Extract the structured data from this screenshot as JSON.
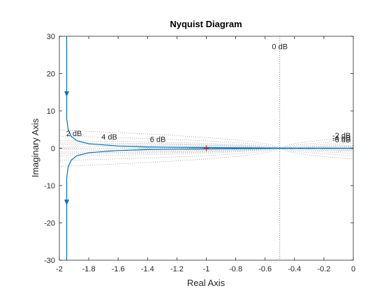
{
  "chart_data": {
    "type": "line",
    "title": "Nyquist Diagram",
    "xlabel": "Real Axis",
    "ylabel": "Imaginary Axis",
    "xlim": [
      -2,
      0
    ],
    "ylim": [
      -30,
      30
    ],
    "x_ticks": [
      "-2",
      "-1.8",
      "-1.6",
      "-1.4",
      "-1.2",
      "-1",
      "-0.8",
      "-0.6",
      "-0.4",
      "-0.2",
      "0"
    ],
    "y_ticks": [
      "-30",
      "-20",
      "-10",
      "0",
      "10",
      "20",
      "30"
    ],
    "grid": "M-circles",
    "critical_point": {
      "x": -1,
      "y": 0,
      "marker": "+"
    },
    "series": [
      {
        "color": "#0072BD",
        "branch_upper": {
          "x": [
            -1.95,
            -1.95,
            -1.95,
            -1.95,
            -1.94,
            -1.92,
            -1.88,
            -1.8,
            -1.6,
            -1.4,
            -1.2,
            -1.0,
            -0.8,
            -0.6,
            -0.4,
            -0.2,
            0
          ],
          "y": [
            30,
            20,
            14,
            8,
            5,
            3.2,
            2,
            1.2,
            0.6,
            0.35,
            0.25,
            0.18,
            0.12,
            0.08,
            0.05,
            0.02,
            0
          ]
        },
        "branch_lower": {
          "x": [
            -1.95,
            -1.95,
            -1.95,
            -1.95,
            -1.94,
            -1.92,
            -1.88,
            -1.8,
            -1.6,
            -1.4,
            -1.2,
            -1.0,
            -0.8,
            -0.6,
            -0.4,
            -0.2,
            0
          ],
          "y": [
            -30,
            -20,
            -14,
            -8,
            -5,
            -3.2,
            -2,
            -1.2,
            -0.6,
            -0.35,
            -0.25,
            -0.18,
            -0.12,
            -0.08,
            -0.05,
            -0.02,
            0
          ]
        },
        "arrows": [
          {
            "x": -1.95,
            "y": 14.5,
            "dir": "down"
          },
          {
            "x": -1.95,
            "y": -14.5,
            "dir": "down"
          }
        ]
      }
    ],
    "db_labels": [
      {
        "text": "0 dB",
        "x": -0.5,
        "y": 26.5
      },
      {
        "text": "2 dB",
        "x": -1.9,
        "y": 3.3
      },
      {
        "text": "4 dB",
        "x": -1.66,
        "y": 2.3
      },
      {
        "text": "6 dB",
        "x": -1.33,
        "y": 1.7
      },
      {
        "text": "-2 dB",
        "x": -0.08,
        "y": 2.7
      },
      {
        "text": "-4 dB",
        "x": -0.08,
        "y": 2.1
      },
      {
        "text": "-6 dB",
        "x": -0.08,
        "y": 1.6
      }
    ],
    "zero_db_line": {
      "x": -0.5
    }
  }
}
